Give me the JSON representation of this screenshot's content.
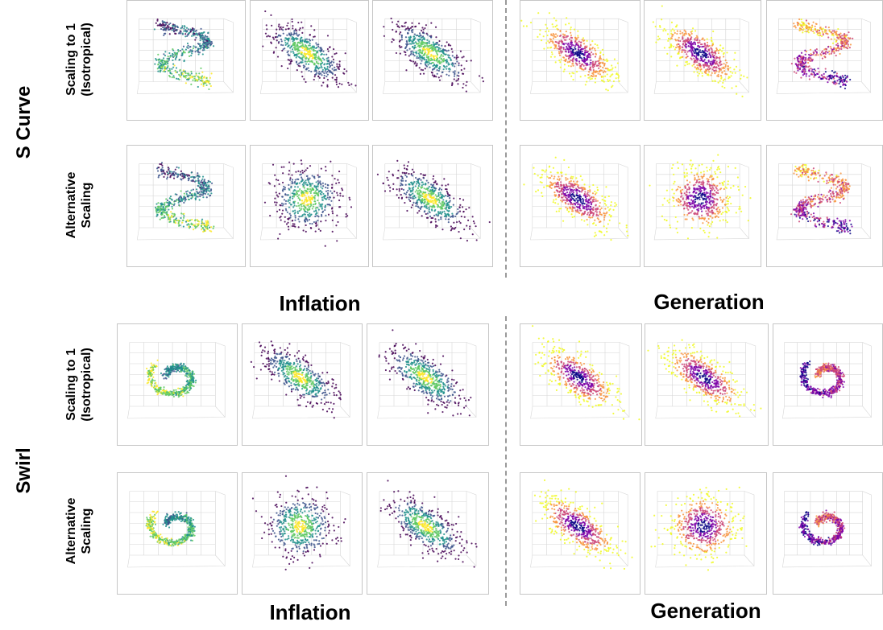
{
  "groups": [
    {
      "label": "S Curve",
      "rows": [
        {
          "line1": "Scaling to 1",
          "line2": "(Isotropical)"
        },
        {
          "line1": "Alternative",
          "line2": "Scaling"
        }
      ]
    },
    {
      "label": "Swirl",
      "rows": [
        {
          "line1": "Scaling to 1",
          "line2": "(Isotropical)"
        },
        {
          "line1": "Alternative",
          "line2": "Scaling"
        }
      ]
    }
  ],
  "sections": {
    "left": "Inflation",
    "right": "Generation"
  },
  "colormaps": {
    "inflation": "viridis",
    "generation": "plasma"
  },
  "palette": {
    "viridis": [
      "#440154",
      "#3b528b",
      "#21918c",
      "#5ec962",
      "#fde725"
    ],
    "plasma": [
      "#0d0887",
      "#7e03a8",
      "#cc4778",
      "#f89540",
      "#f0f921"
    ]
  },
  "panels": [
    [
      "s-curve",
      "ellipse-tilted",
      "ellipse-tilted",
      "ellipse-tilted",
      "ellipse-tilted",
      "s-curve"
    ],
    [
      "s-curve",
      "ellipse-round",
      "ellipse-tilted",
      "ellipse-tilted",
      "ellipse-round",
      "s-curve"
    ],
    [
      "swirl",
      "ellipse-tilted",
      "ellipse-tilted",
      "ellipse-tilted",
      "ellipse-tilted",
      "swirl"
    ],
    [
      "swirl",
      "ellipse-round",
      "ellipse-tilted",
      "ellipse-tilted",
      "ellipse-round",
      "swirl"
    ]
  ]
}
